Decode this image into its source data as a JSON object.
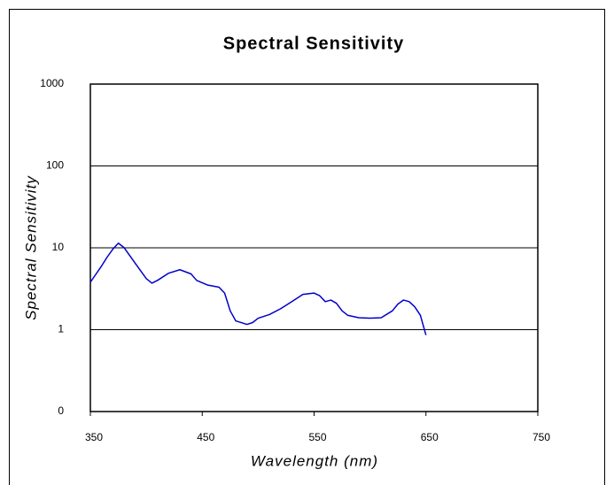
{
  "chart_data": {
    "type": "line",
    "title": "Spectral Sensitivity",
    "xlabel": "Wavelength (nm)",
    "ylabel": "Spectral Sensitivity",
    "x": [
      350,
      360,
      365,
      370,
      375,
      380,
      390,
      400,
      405,
      410,
      420,
      430,
      440,
      445,
      455,
      465,
      470,
      475,
      480,
      490,
      495,
      500,
      510,
      520,
      530,
      540,
      550,
      555,
      560,
      565,
      570,
      575,
      580,
      590,
      600,
      610,
      620,
      625,
      630,
      635,
      640,
      645,
      650
    ],
    "series": [
      {
        "name": "Spectral Sensitivity",
        "color": "#0000cc",
        "values": [
          3.8,
          6.0,
          7.7,
          9.6,
          11.4,
          10.1,
          6.5,
          4.2,
          3.7,
          4.0,
          4.9,
          5.4,
          4.8,
          4.0,
          3.5,
          3.3,
          2.8,
          1.7,
          1.28,
          1.16,
          1.22,
          1.38,
          1.53,
          1.8,
          2.2,
          2.7,
          2.8,
          2.6,
          2.2,
          2.3,
          2.1,
          1.7,
          1.5,
          1.4,
          1.38,
          1.4,
          1.7,
          2.06,
          2.3,
          2.2,
          1.9,
          1.5,
          0.86
        ]
      }
    ],
    "xlim": [
      350,
      750
    ],
    "xticks": [
      350,
      450,
      550,
      650,
      750
    ],
    "ylim": [
      0.1,
      1000
    ],
    "yticks": [
      {
        "value": 0.1,
        "label": "0"
      },
      1,
      10,
      100,
      1000
    ],
    "ylog": true,
    "grid": true
  }
}
